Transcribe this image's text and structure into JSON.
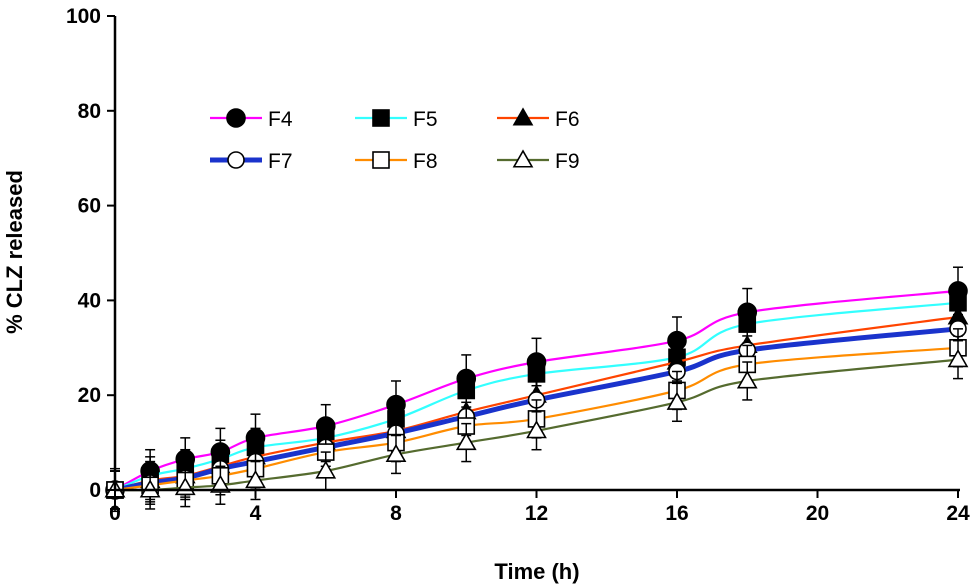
{
  "chart_data": {
    "type": "line",
    "title": "",
    "xlabel": "Time (h)",
    "ylabel": "% CLZ released",
    "xlim": [
      0,
      24
    ],
    "ylim": [
      0,
      100
    ],
    "xticks": [
      0,
      4,
      8,
      12,
      16,
      20,
      24
    ],
    "yticks": [
      0,
      20,
      40,
      60,
      80,
      100
    ],
    "x": [
      0,
      1,
      2,
      3,
      4,
      6,
      8,
      10,
      12,
      16,
      18,
      24
    ],
    "legend_position": "top-left (inside)",
    "grid": false,
    "series": [
      {
        "name": "F4",
        "color": "#ff00ff",
        "marker": "circle-filled",
        "values": [
          0,
          4,
          6.5,
          8,
          11,
          13.5,
          18,
          23.5,
          27,
          31.5,
          37.5,
          42
        ],
        "errors": [
          4.5,
          4.5,
          4.5,
          5,
          5,
          4.5,
          5,
          5,
          5,
          5,
          5,
          5
        ]
      },
      {
        "name": "F5",
        "color": "#33ffff",
        "marker": "square-filled",
        "values": [
          0,
          3,
          4.5,
          6.5,
          9,
          11,
          15,
          21,
          24.5,
          28,
          35,
          39.5
        ],
        "errors": [
          4,
          4,
          4,
          4,
          4,
          4,
          4,
          4,
          4,
          4,
          4,
          4
        ]
      },
      {
        "name": "F6",
        "color": "#ff4400",
        "marker": "triangle-filled",
        "values": [
          0,
          2,
          3,
          5,
          7,
          10,
          12.5,
          16.5,
          20,
          27,
          30.5,
          36.5
        ],
        "errors": [
          4,
          4,
          4,
          4,
          4,
          4,
          4,
          4,
          4,
          4,
          4,
          4
        ]
      },
      {
        "name": "F7",
        "color": "#1a33cc",
        "marker": "circle-open",
        "values": [
          0,
          1.5,
          2.5,
          4.5,
          6,
          9,
          12,
          15.5,
          19,
          25,
          29.5,
          34
        ],
        "errors": [
          4,
          4,
          4,
          4,
          4,
          4,
          4,
          4,
          4,
          4,
          4,
          4
        ]
      },
      {
        "name": "F8",
        "color": "#ff8c00",
        "marker": "square-open",
        "values": [
          0,
          1,
          2,
          3,
          4.5,
          8,
          10,
          13.5,
          15,
          21,
          26.5,
          30
        ],
        "errors": [
          4,
          4,
          4,
          4,
          4,
          4,
          4,
          4,
          4,
          4,
          4,
          4
        ]
      },
      {
        "name": "F9",
        "color": "#556b2f",
        "marker": "triangle-open",
        "values": [
          0,
          0,
          0.5,
          1,
          2,
          4,
          7.5,
          10,
          12.5,
          18.5,
          23,
          27.5
        ],
        "errors": [
          4,
          4,
          4,
          4,
          4,
          4,
          4,
          4,
          4,
          4,
          4,
          4
        ]
      }
    ]
  }
}
